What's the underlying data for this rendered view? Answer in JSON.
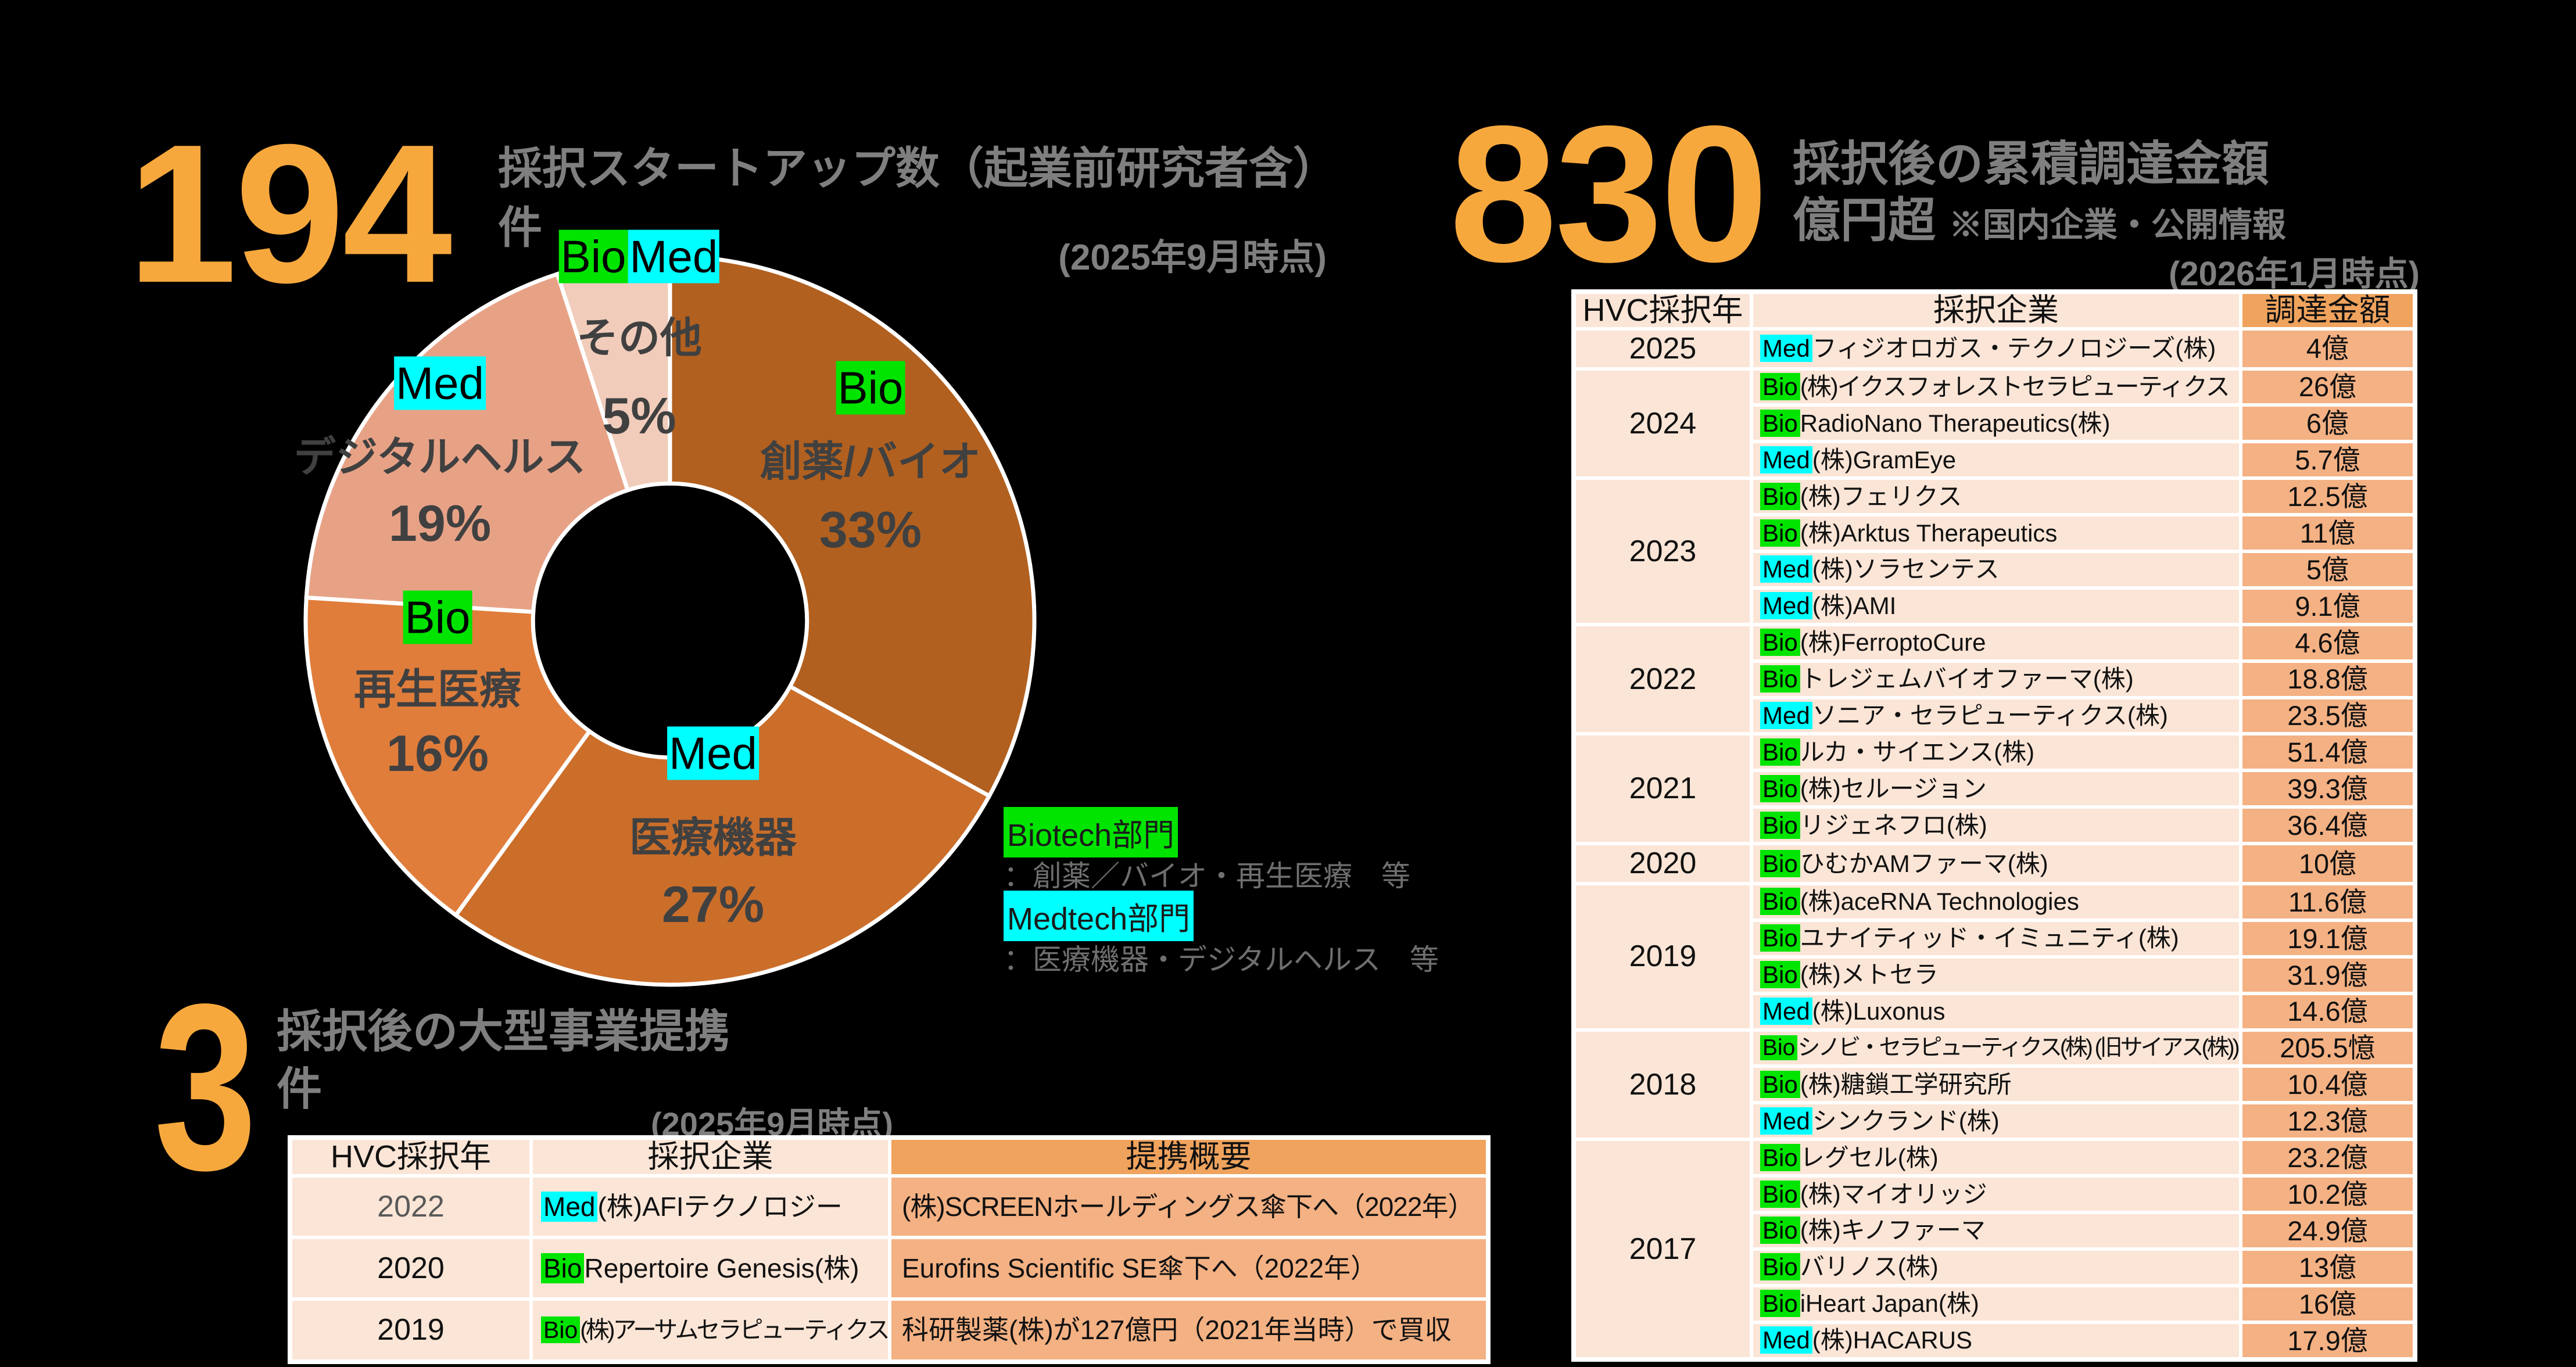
{
  "colors": {
    "background": "#000000",
    "accent_orange": "#F7A83D",
    "title_gray": "#7F7F7F",
    "label_dark": "#404040",
    "bio_chip": "#00E400",
    "med_chip": "#00FFFF",
    "table_light": "#FBE5D6",
    "table_mid": "#F4B183",
    "table_header_orange": "#F0A35D",
    "grid_white": "#FFFFFF"
  },
  "stat_startups": {
    "value": "194",
    "title": "採択スタートアップ数（起業前研究者含）",
    "unit": "件",
    "asof": "(2025年9月時点)"
  },
  "stat_funding": {
    "value": "830",
    "title": "採択後の累積調達金額",
    "unit": "億円超",
    "note": "※国内企業・公開情報",
    "asof": "(2026年1月時点)"
  },
  "stat_deals": {
    "value": "3",
    "title": "採択後の大型事業提携",
    "unit": "件",
    "asof": "(2025年9月時点)"
  },
  "chart_data": {
    "type": "donut",
    "title": "採択スタートアップ数（起業前研究者含）",
    "unit": "%",
    "start_angle_deg": 0,
    "clockwise": true,
    "inner_radius_ratio": 0.376,
    "separator_color": "#FFFFFF",
    "segments": [
      {
        "label": "創薬/バイオ",
        "dept": [
          "Bio"
        ],
        "value": 33,
        "percent_label": "33%",
        "color": "#B2601F"
      },
      {
        "label": "医療機器",
        "dept": [
          "Med"
        ],
        "value": 27,
        "percent_label": "27%",
        "color": "#CB6E2A"
      },
      {
        "label": "再生医療",
        "dept": [
          "Bio"
        ],
        "value": 16,
        "percent_label": "16%",
        "color": "#E07D3B"
      },
      {
        "label": "デジタルヘルス",
        "dept": [
          "Med"
        ],
        "value": 19,
        "percent_label": "19%",
        "color": "#E7A286"
      },
      {
        "label": "その他",
        "dept": [
          "Bio",
          "Med"
        ],
        "value": 5,
        "percent_label": "5%",
        "color": "#F1CCBB"
      }
    ]
  },
  "legend": {
    "items": [
      {
        "chip": "Biotech部門",
        "chip_color": "#00E400",
        "desc": "：創薬／バイオ・再生医療　等"
      },
      {
        "chip": "Medtech部門",
        "chip_color": "#00FFFF",
        "desc": "：医療機器・デジタルヘルス　等"
      }
    ]
  },
  "funding_table": {
    "headers": [
      "HVC採択年",
      "採択企業",
      "調達金額"
    ],
    "groups": [
      {
        "year": "2025",
        "rows": [
          {
            "dept": "Med",
            "company": "フィジオロガス・テクノロジーズ(株)",
            "amount": "4億"
          }
        ]
      },
      {
        "year": "2024",
        "rows": [
          {
            "dept": "Bio",
            "company": "(株)イクスフォレストセラピューティクス",
            "amount": "26億"
          },
          {
            "dept": "Bio",
            "company": "RadioNano Therapeutics(株)",
            "amount": "6億"
          },
          {
            "dept": "Med",
            "company": "(株)GramEye",
            "amount": "5.7億"
          }
        ]
      },
      {
        "year": "2023",
        "rows": [
          {
            "dept": "Bio",
            "company": "(株)フェリクス",
            "amount": "12.5億"
          },
          {
            "dept": "Bio",
            "company": "(株)Arktus Therapeutics",
            "amount": "11億"
          },
          {
            "dept": "Med",
            "company": "(株)ソラセンテス",
            "amount": "5億"
          },
          {
            "dept": "Med",
            "company": "(株)AMI",
            "amount": "9.1億"
          }
        ]
      },
      {
        "year": "2022",
        "rows": [
          {
            "dept": "Bio",
            "company": "(株)FerroptoCure",
            "amount": "4.6億"
          },
          {
            "dept": "Bio",
            "company": "トレジェムバイオファーマ(株)",
            "amount": "18.8億"
          },
          {
            "dept": "Med",
            "company": "ソニア・セラピューティクス(株)",
            "amount": "23.5億"
          }
        ]
      },
      {
        "year": "2021",
        "rows": [
          {
            "dept": "Bio",
            "company": "ルカ・サイエンス(株)",
            "amount": "51.4億"
          },
          {
            "dept": "Bio",
            "company": "(株)セルージョン",
            "amount": "39.3億"
          },
          {
            "dept": "Bio",
            "company": "リジェネフロ(株)",
            "amount": "36.4億"
          }
        ]
      },
      {
        "year": "2020",
        "rows": [
          {
            "dept": "Bio",
            "company": "ひむかAMファーマ(株)",
            "amount": "10億"
          }
        ]
      },
      {
        "year": "2019",
        "rows": [
          {
            "dept": "Bio",
            "company": "(株)aceRNA Technologies",
            "amount": "11.6億"
          },
          {
            "dept": "Bio",
            "company": "ユナイティッド・イミュニティ(株)",
            "amount": "19.1億"
          },
          {
            "dept": "Bio",
            "company": "(株)メトセラ",
            "amount": "31.9億"
          },
          {
            "dept": "Med",
            "company": "(株)Luxonus",
            "amount": "14.6億"
          }
        ]
      },
      {
        "year": "2018",
        "rows": [
          {
            "dept": "Bio",
            "company": "シノビ・セラピューティクス(株) (旧サイアス(株))",
            "amount": "205.5憶"
          },
          {
            "dept": "Bio",
            "company": "(株)糖鎖工学研究所",
            "amount": "10.4億"
          },
          {
            "dept": "Med",
            "company": "シンクランド(株)",
            "amount": "12.3億"
          }
        ]
      },
      {
        "year": "2017",
        "rows": [
          {
            "dept": "Bio",
            "company": "レグセル(株)",
            "amount": "23.2億"
          },
          {
            "dept": "Bio",
            "company": "(株)マイオリッジ",
            "amount": "10.2億"
          },
          {
            "dept": "Bio",
            "company": "(株)キノファーマ",
            "amount": "24.9億"
          },
          {
            "dept": "Bio",
            "company": "バリノス(株)",
            "amount": "13億"
          },
          {
            "dept": "Bio",
            "company": "iHeart Japan(株)",
            "amount": "16億"
          },
          {
            "dept": "Med",
            "company": "(株)HACARUS",
            "amount": "17.9億"
          }
        ]
      }
    ]
  },
  "partnership_table": {
    "headers": [
      "HVC採択年",
      "採択企業",
      "提携概要"
    ],
    "rows": [
      {
        "year": "2022",
        "year_muted": true,
        "dept": "Med",
        "company": "(株)AFIテクノロジー",
        "summary": "(株)SCREENホールディングス傘下へ（2022年）"
      },
      {
        "year": "2020",
        "year_muted": false,
        "dept": "Bio",
        "company": "Repertoire Genesis(株)",
        "summary": "Eurofins Scientific SE傘下へ（2022年）"
      },
      {
        "year": "2019",
        "year_muted": false,
        "dept": "Bio",
        "company": "(株)アーサムセラピューティクス",
        "summary": "科研製薬(株)が127億円（2021年当時）で買収"
      }
    ]
  }
}
